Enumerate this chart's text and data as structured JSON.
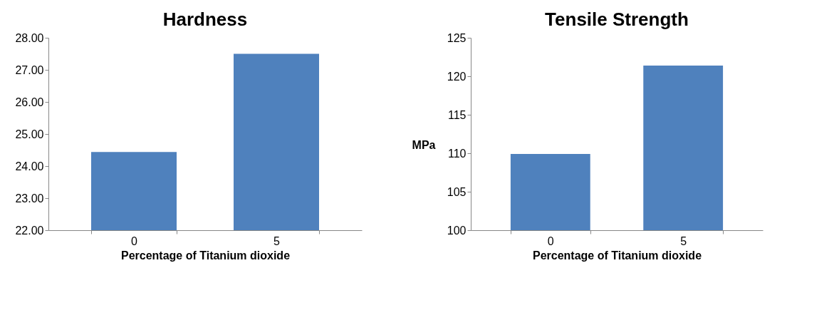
{
  "chart_data": [
    {
      "type": "bar",
      "title": "Hardness",
      "xlabel": "Percentage of Titanium dioxide",
      "categories": [
        "0",
        "5"
      ],
      "values": [
        24.44,
        27.5
      ],
      "color": "#4f81bd",
      "ylim": [
        22,
        28
      ],
      "yticks": [
        {
          "value": 22,
          "label": "22.00"
        },
        {
          "value": 23,
          "label": "23.00"
        },
        {
          "value": 24,
          "label": "24.00"
        },
        {
          "value": 25,
          "label": "25.00"
        },
        {
          "value": 26,
          "label": "26.00"
        },
        {
          "value": 27,
          "label": "27.00"
        },
        {
          "value": 28,
          "label": "28.00"
        }
      ],
      "grid": false
    },
    {
      "type": "bar",
      "title": "Tensile Strength",
      "xlabel": "Percentage of Titanium dioxide",
      "ylabel": "MPa",
      "categories": [
        "0",
        "5"
      ],
      "values": [
        109.9,
        121.4
      ],
      "color": "#4f81bd",
      "ylim": [
        100,
        125
      ],
      "yticks": [
        100,
        105,
        110,
        115,
        120,
        125
      ],
      "grid": false
    }
  ]
}
